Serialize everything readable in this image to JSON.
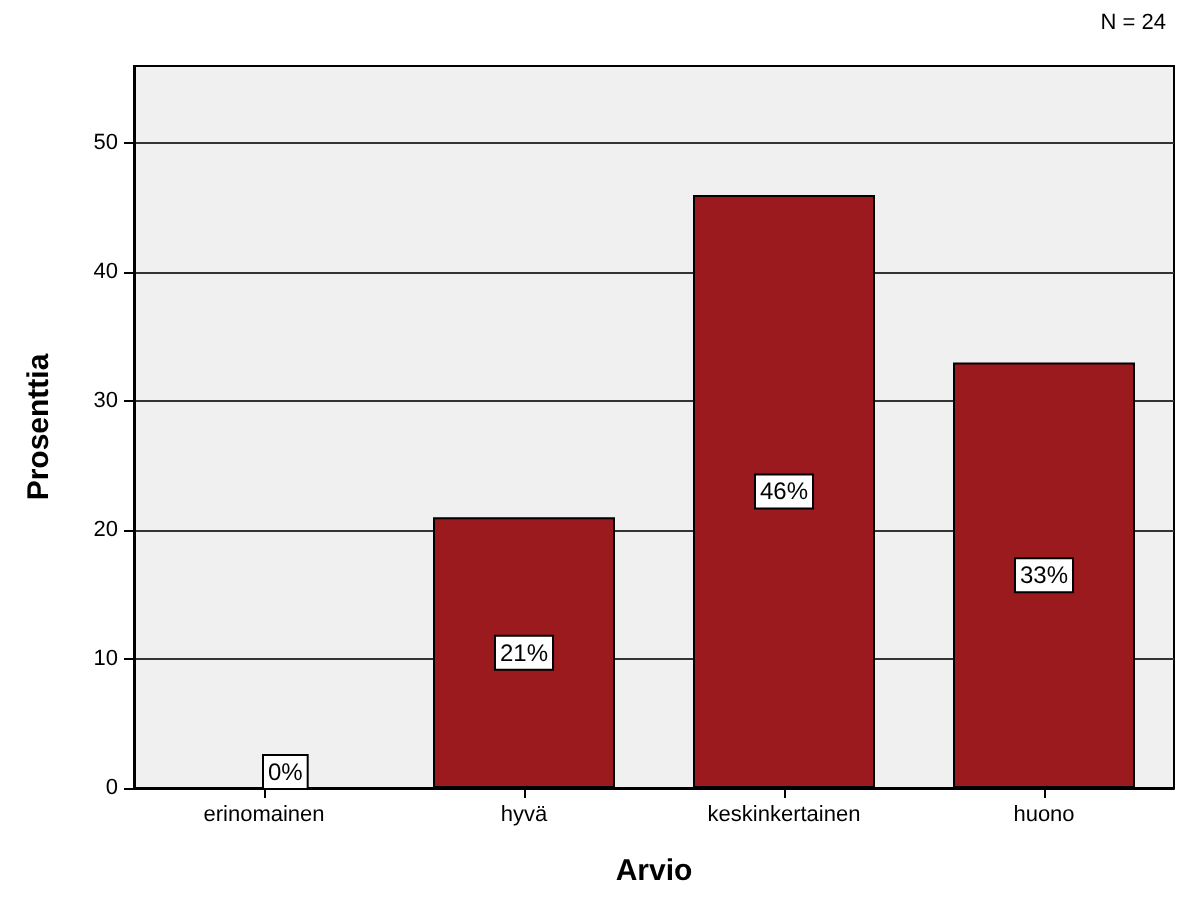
{
  "chart_data": {
    "type": "bar",
    "xlabel": "Arvio",
    "ylabel": "Prosenttia",
    "annotations": [
      "N = 24"
    ],
    "categories": [
      "erinomainen",
      "hyvä",
      "keskinkertainen",
      "huono"
    ],
    "values": [
      0,
      21,
      46,
      33
    ],
    "value_labels": [
      "0%",
      "21%",
      "46%",
      "33%"
    ],
    "color": "#9b1a1e",
    "ylim": [
      0,
      56
    ],
    "yticks": [
      0,
      10,
      20,
      30,
      40,
      50
    ],
    "grid": "y"
  }
}
